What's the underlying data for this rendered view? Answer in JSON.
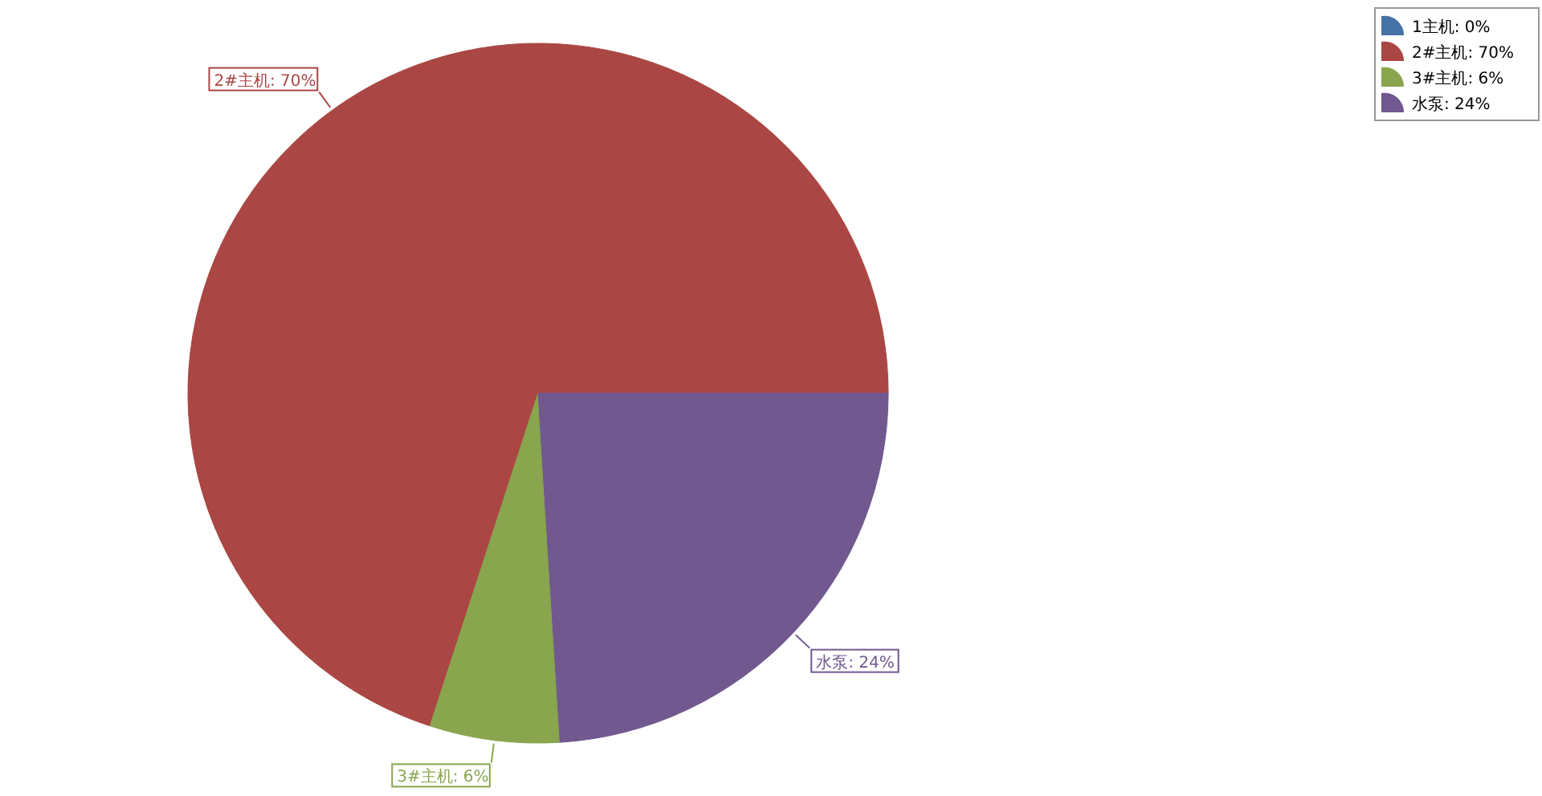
{
  "chart_data": {
    "type": "pie",
    "categories": [
      "1主机",
      "2#主机",
      "3#主机",
      "水泵"
    ],
    "values": [
      0,
      70,
      6,
      24
    ],
    "value_labels": [
      "0%",
      "70%",
      "6%",
      "24%"
    ],
    "colors": [
      "#4572a7",
      "#aa4643",
      "#89a54e",
      "#71588f"
    ],
    "legend": "top right"
  }
}
